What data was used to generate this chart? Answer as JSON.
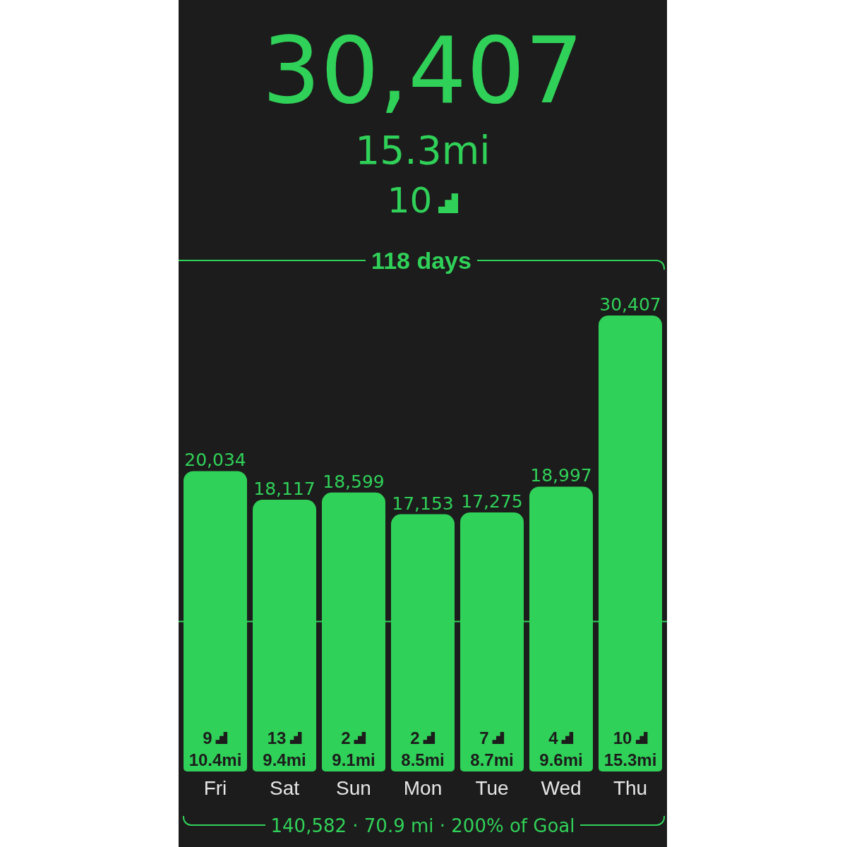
{
  "chart_data": {
    "type": "bar",
    "title": "30,407",
    "subtitle": "15.3mi",
    "categories": [
      "Fri",
      "Sat",
      "Sun",
      "Mon",
      "Tue",
      "Wed",
      "Thu"
    ],
    "values": [
      20034,
      18117,
      18599,
      17153,
      17275,
      18997,
      30407
    ],
    "color": "#30d158",
    "value_labels": [
      "20,034",
      "18,117",
      "18,599",
      "17,153",
      "17,275",
      "18,997",
      "30,407"
    ],
    "ref_lines": [
      {
        "axis": "y",
        "value": 10000,
        "color": "#30d158"
      }
    ],
    "annotations": [
      "10",
      "118 days",
      "140,582 · 70.9 mi · 200% of Goal",
      "9",
      "10.4mi",
      "13",
      "9.4mi",
      "2",
      "9.1mi",
      "2",
      "8.5mi",
      "7",
      "8.7mi",
      "4",
      "9.6mi",
      "10",
      "15.3mi"
    ]
  }
}
